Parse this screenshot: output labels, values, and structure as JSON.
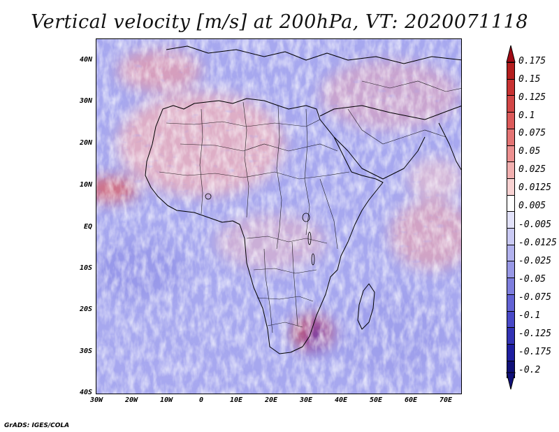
{
  "title": "Vertical velocity [m/s] at 200hPa, VT: 2020071118",
  "credit": "GrADS: IGES/COLA",
  "map": {
    "region": "Africa",
    "lat_range": [
      -40,
      45
    ],
    "lon_range": [
      -30,
      75
    ],
    "lat_ticks": [
      "40N",
      "30N",
      "20N",
      "10N",
      "EQ",
      "10S",
      "20S",
      "30S",
      "40S"
    ],
    "lon_ticks": [
      "30W",
      "20W",
      "10W",
      "0",
      "10E",
      "20E",
      "30E",
      "40E",
      "50E",
      "60E",
      "70E"
    ]
  },
  "colorbar": {
    "labels": [
      "0.175",
      "0.15",
      "0.125",
      "0.1",
      "0.075",
      "0.05",
      "0.025",
      "0.0125",
      "0.005",
      "-0.005",
      "-0.0125",
      "-0.025",
      "-0.05",
      "-0.075",
      "-0.1",
      "-0.125",
      "-0.175",
      "-0.2"
    ],
    "colors": [
      "#b41e1e",
      "#c83232",
      "#d24646",
      "#dc5a5a",
      "#e47474",
      "#ec9090",
      "#f2b0b0",
      "#f8d2d2",
      "#ffffff",
      "#e2e2fa",
      "#cacaf4",
      "#b2b2ee",
      "#9898e6",
      "#7e7ede",
      "#6262d4",
      "#4848c8",
      "#3232b4",
      "#1e1ea0",
      "#101078"
    ],
    "arrow_top_color": "#a00a14",
    "arrow_bottom_color": "#10107a"
  }
}
